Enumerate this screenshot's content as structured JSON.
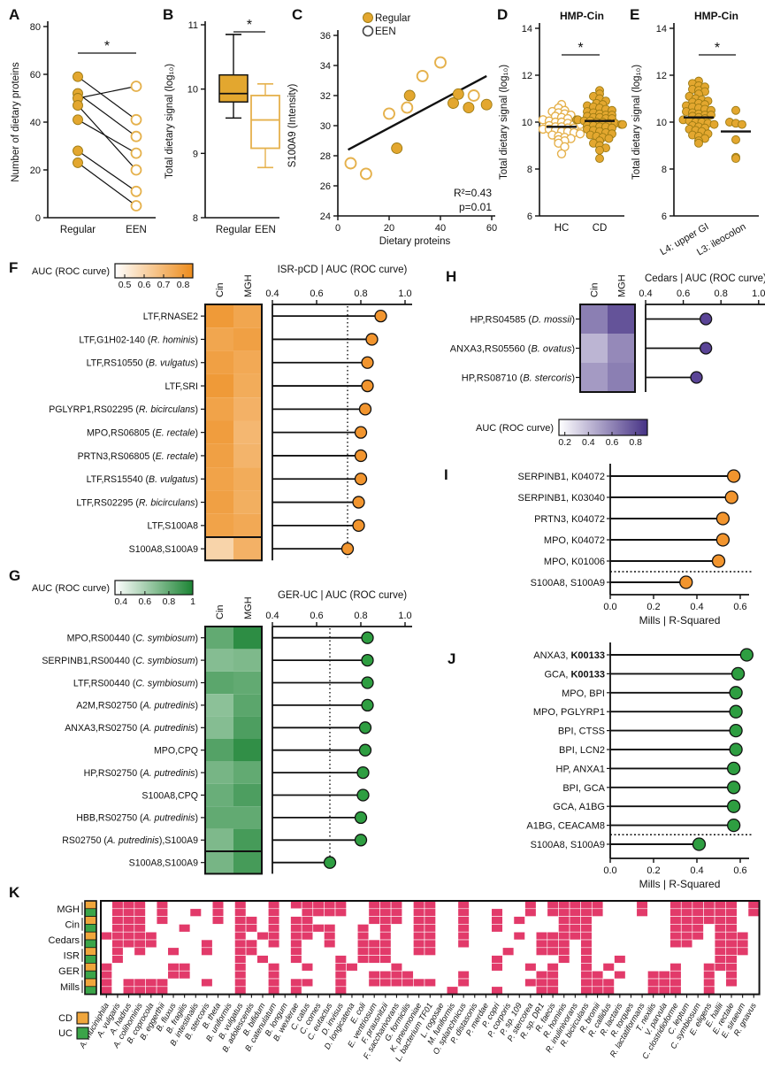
{
  "colors": {
    "gold": "#E3A72F",
    "gold_dark": "#9C7A12",
    "gold_open": "#E5B14C",
    "orange": "#F2952E",
    "green": "#2E9E41",
    "purple": "#5A4496",
    "heat_orange": "#ED8C1C",
    "heat_green": "#1C8434",
    "heat_purple": "#463285",
    "pink": "#E23A6A",
    "cd": "#F0A63C",
    "uc": "#3BA549"
  },
  "chart_data": [
    {
      "id": "A",
      "label": "A",
      "type": "paired-dot",
      "ylabel": "Number of dietary proteins",
      "ylim": [
        0,
        80
      ],
      "yticks": [
        0,
        20,
        40,
        60,
        80
      ],
      "categories": [
        "Regular",
        "EEN"
      ],
      "pairs": [
        [
          59,
          41
        ],
        [
          52,
          34
        ],
        [
          50,
          55
        ],
        [
          47,
          20
        ],
        [
          41,
          27
        ],
        [
          28,
          11
        ],
        [
          23,
          5
        ]
      ],
      "sig": "*"
    },
    {
      "id": "B",
      "label": "B",
      "type": "box",
      "ylabel": "Total dietary signal (log₁₀)",
      "ylim": [
        8,
        11
      ],
      "yticks": [
        8,
        9,
        10,
        11
      ],
      "boxes": [
        {
          "label": "Regular",
          "filled": true,
          "low": 9.55,
          "q1": 9.8,
          "median": 9.93,
          "q3": 10.22,
          "high": 10.85
        },
        {
          "label": "EEN",
          "filled": false,
          "low": 8.78,
          "q1": 9.08,
          "median": 9.52,
          "q3": 9.9,
          "high": 10.08
        }
      ],
      "sig": "*"
    },
    {
      "id": "C",
      "label": "C",
      "type": "scatter",
      "xlabel": "Dietary proteins",
      "ylabel": "S100A9 (Intensity)",
      "xlim": [
        0,
        60
      ],
      "xticks": [
        0,
        20,
        40,
        60
      ],
      "ylim": [
        24,
        36
      ],
      "yticks": [
        24,
        26,
        28,
        30,
        32,
        34,
        36
      ],
      "legend": [
        {
          "label": "Regular",
          "filled": true
        },
        {
          "label": "EEN",
          "filled": false
        }
      ],
      "regular": [
        [
          23,
          28.5
        ],
        [
          28,
          32
        ],
        [
          45,
          31.5
        ],
        [
          47,
          32.1
        ],
        [
          51,
          31.2
        ],
        [
          58,
          31.4
        ]
      ],
      "een": [
        [
          5,
          27.5
        ],
        [
          11,
          26.8
        ],
        [
          20,
          30.8
        ],
        [
          27,
          31.2
        ],
        [
          33,
          33.3
        ],
        [
          40,
          34.2
        ],
        [
          53,
          32
        ]
      ],
      "fit_line": [
        [
          4,
          28.4
        ],
        [
          58,
          33.3
        ]
      ],
      "annotation": [
        "R²=0.43",
        "p=0.01"
      ]
    },
    {
      "id": "D",
      "label": "D",
      "type": "beeswarm",
      "title": "HMP-Cin",
      "ylabel": "Total dietary signal (log₁₀)",
      "ylim": [
        6,
        14
      ],
      "yticks": [
        6,
        8,
        10,
        12,
        14
      ],
      "rotate_cats": false,
      "sig": "*",
      "groups": [
        {
          "label": "HC",
          "filled": false,
          "mean": 9.8,
          "values": [
            10.75,
            10.6,
            10.5,
            10.45,
            10.4,
            10.35,
            10.3,
            10.25,
            10.2,
            10.15,
            10.1,
            10.05,
            10.0,
            10.0,
            9.95,
            9.9,
            9.9,
            9.85,
            9.8,
            9.8,
            9.75,
            9.75,
            9.7,
            9.7,
            9.65,
            9.6,
            9.6,
            9.55,
            9.5,
            9.45,
            9.4,
            9.35,
            9.3,
            9.25,
            9.2,
            9.1,
            8.95,
            8.65
          ]
        },
        {
          "label": "CD",
          "filled": true,
          "mean": 10.05,
          "values": [
            11.35,
            11.2,
            11.1,
            11.0,
            10.9,
            10.8,
            10.75,
            10.7,
            10.65,
            10.6,
            10.55,
            10.5,
            10.45,
            10.4,
            10.35,
            10.3,
            10.3,
            10.25,
            10.2,
            10.2,
            10.15,
            10.15,
            10.1,
            10.1,
            10.05,
            10.05,
            10.0,
            10.0,
            9.95,
            9.95,
            9.9,
            9.9,
            9.85,
            9.85,
            9.8,
            9.8,
            9.75,
            9.7,
            9.65,
            9.6,
            9.55,
            9.5,
            9.45,
            9.4,
            9.35,
            9.3,
            9.2,
            9.1,
            9.0,
            8.9,
            8.8,
            8.45
          ]
        }
      ]
    },
    {
      "id": "E",
      "label": "E",
      "type": "beeswarm",
      "title": "HMP-Cin",
      "ylabel": "Total dietary signal (log₁₀)",
      "ylim": [
        6,
        14
      ],
      "yticks": [
        6,
        8,
        10,
        12,
        14
      ],
      "rotate_cats": true,
      "sig": "*",
      "groups": [
        {
          "label": "L4: upper GI",
          "filled": true,
          "mean": 10.2,
          "values": [
            11.75,
            11.65,
            11.55,
            11.5,
            11.4,
            11.35,
            11.3,
            11.2,
            11.1,
            11.0,
            10.95,
            10.9,
            10.85,
            10.8,
            10.75,
            10.7,
            10.65,
            10.6,
            10.55,
            10.5,
            10.45,
            10.4,
            10.35,
            10.3,
            10.3,
            10.25,
            10.2,
            10.15,
            10.1,
            10.05,
            10.0,
            10.0,
            9.95,
            9.9,
            9.85,
            9.8,
            9.75,
            9.7,
            9.65,
            9.6,
            9.5,
            9.45,
            9.4,
            9.3,
            9.2,
            9.1
          ]
        },
        {
          "label": "L3: ileocolon",
          "filled": true,
          "mean": 9.6,
          "values": [
            10.5,
            10.0,
            9.95,
            9.9,
            9.25,
            8.5,
            8.45
          ]
        }
      ]
    },
    {
      "id": "F",
      "label": "F",
      "type": "heat-lollipop",
      "color": "orange",
      "colorbar": {
        "label": "AUC (ROC curve)",
        "ticks": [
          0.5,
          0.6,
          0.7,
          0.8
        ],
        "tick_labels": [
          "0.5",
          "0.6",
          "0.7",
          "0.8"
        ],
        "domain": [
          0.45,
          0.85
        ]
      },
      "columns": [
        "Cin",
        "MGH"
      ],
      "axis": {
        "label": "ISR-pCD | AUC (ROC curve)",
        "lim": [
          0.4,
          1.0
        ],
        "ticks": [
          0.4,
          0.6,
          0.8,
          1.0
        ],
        "tick_labels": [
          "0.4",
          "0.6",
          "0.8",
          "1.0"
        ]
      },
      "dotted_at": 0.74,
      "rows": [
        {
          "label": "LTF,RNASE2",
          "heat": [
            0.8,
            0.76
          ],
          "value": 0.89
        },
        {
          "label": "LTF,G1H02-140 (*R. hominis*)",
          "heat": [
            0.76,
            0.78
          ],
          "value": 0.85
        },
        {
          "label": "LTF,RS10550 (*B. vulgatus*)",
          "heat": [
            0.78,
            0.75
          ],
          "value": 0.83
        },
        {
          "label": "LTF,SRI",
          "heat": [
            0.8,
            0.74
          ],
          "value": 0.83
        },
        {
          "label": "PGLYRP1,RS02295 (*R. bicirculans*)",
          "heat": [
            0.77,
            0.72
          ],
          "value": 0.82
        },
        {
          "label": "MPO,RS06805 (*E. rectale*)",
          "heat": [
            0.79,
            0.7
          ],
          "value": 0.8
        },
        {
          "label": "PRTN3,RS06805 (*E. rectale*)",
          "heat": [
            0.78,
            0.71
          ],
          "value": 0.8
        },
        {
          "label": "LTF,RS15540 (*B. vulgatus*)",
          "heat": [
            0.77,
            0.74
          ],
          "value": 0.8
        },
        {
          "label": "LTF,RS02295 (*R. bicirculans*)",
          "heat": [
            0.78,
            0.73
          ],
          "value": 0.79
        },
        {
          "label": "LTF,S100A8",
          "heat": [
            0.77,
            0.75
          ],
          "value": 0.79
        },
        {
          "label": "S100A8,S100A9",
          "heat": [
            0.6,
            0.72
          ],
          "value": 0.74,
          "separated": true
        }
      ]
    },
    {
      "id": "G",
      "label": "G",
      "type": "heat-lollipop",
      "color": "green",
      "colorbar": {
        "label": "AUC (ROC curve)",
        "ticks": [
          0.4,
          0.6,
          0.8,
          1.0
        ],
        "tick_labels": [
          "0.4",
          "0.6",
          "0.8",
          "1"
        ],
        "domain": [
          0.35,
          1.0
        ]
      },
      "columns": [
        "Cin",
        "MGH"
      ],
      "axis": {
        "label": "GER-UC | AUC (ROC curve)",
        "lim": [
          0.4,
          1.0
        ],
        "ticks": [
          0.4,
          0.6,
          0.8,
          1.0
        ],
        "tick_labels": [
          "0.4",
          "0.6",
          "0.8",
          "1.0"
        ]
      },
      "dotted_at": 0.66,
      "rows": [
        {
          "label": "MPO,RS00440 (*C. symbiosum*)",
          "heat": [
            0.8,
            0.95
          ],
          "value": 0.83
        },
        {
          "label": "SERPINB1,RS00440 (*C. symbiosum*)",
          "heat": [
            0.7,
            0.72
          ],
          "value": 0.83
        },
        {
          "label": "LTF,RS00440 (*C. symbiosum*)",
          "heat": [
            0.82,
            0.8
          ],
          "value": 0.83
        },
        {
          "label": "A2M,RS02750 (*A. putredinis*)",
          "heat": [
            0.68,
            0.82
          ],
          "value": 0.83
        },
        {
          "label": "ANXA3,RS02750 (*A. putredinis*)",
          "heat": [
            0.7,
            0.86
          ],
          "value": 0.82
        },
        {
          "label": "MPO,CPQ",
          "heat": [
            0.84,
            0.94
          ],
          "value": 0.82
        },
        {
          "label": "HP,RS02750 (*A. putredinis*)",
          "heat": [
            0.74,
            0.8
          ],
          "value": 0.81
        },
        {
          "label": "S100A8,CPQ",
          "heat": [
            0.78,
            0.86
          ],
          "value": 0.81
        },
        {
          "label": "HBB,RS02750 (*A. putredinis*)",
          "heat": [
            0.8,
            0.8
          ],
          "value": 0.8
        },
        {
          "label": "RS02750 (*A. putredinis*),S100A9",
          "heat": [
            0.72,
            0.88
          ],
          "value": 0.8
        },
        {
          "label": "S100A8,S100A9",
          "heat": [
            0.74,
            0.88
          ],
          "value": 0.66,
          "separated": true
        }
      ]
    },
    {
      "id": "H",
      "label": "H",
      "type": "heat-lollipop",
      "color": "purple",
      "colorbar": {
        "label": "AUC (ROC curve)",
        "ticks": [
          0.2,
          0.4,
          0.6,
          0.8
        ],
        "tick_labels": [
          "0.2",
          "0.4",
          "0.6",
          "0.8"
        ],
        "domain": [
          0.15,
          0.9
        ],
        "below": true
      },
      "columns": [
        "Cin",
        "MGH"
      ],
      "axis": {
        "label": "Cedars | AUC (ROC curve)",
        "lim": [
          0.4,
          1.0
        ],
        "ticks": [
          0.4,
          0.6,
          0.8,
          1.0
        ],
        "tick_labels": [
          "0.4",
          "0.6",
          "0.8",
          "1.0"
        ]
      },
      "dotted_at": null,
      "rows": [
        {
          "label": "HP,RS04585 (*D. mossii*)",
          "heat": [
            0.62,
            0.78
          ],
          "value": 0.72
        },
        {
          "label": "ANXA3,RS05560 (*B. ovatus*)",
          "heat": [
            0.42,
            0.58
          ],
          "value": 0.72
        },
        {
          "label": "HP,RS08710 (*B. stercoris*)",
          "heat": [
            0.52,
            0.62
          ],
          "value": 0.67
        }
      ]
    },
    {
      "id": "I",
      "label": "I",
      "type": "lollipop",
      "color": "orange",
      "axis": {
        "label": "Mills | R-Squared",
        "ticks": [
          0.0,
          0.2,
          0.4,
          0.6
        ],
        "tick_labels": [
          "0.0",
          "0.2",
          "0.4",
          "0.6"
        ]
      },
      "rows": [
        {
          "label": "SERPINB1, K04072",
          "value": 0.57
        },
        {
          "label": "SERPINB1, K03040",
          "value": 0.56
        },
        {
          "label": "PRTN3, K04072",
          "value": 0.52
        },
        {
          "label": "MPO, K04072",
          "value": 0.52
        },
        {
          "label": "MPO, K01006",
          "value": 0.5
        },
        {
          "label": "S100A8, S100A9",
          "value": 0.35,
          "below_dotted": true
        }
      ]
    },
    {
      "id": "J",
      "label": "J",
      "type": "lollipop",
      "color": "green",
      "axis": {
        "label": "Mills | R-Squared",
        "ticks": [
          0.0,
          0.2,
          0.4,
          0.6
        ],
        "tick_labels": [
          "0.0",
          "0.2",
          "0.4",
          "0.6"
        ]
      },
      "rows": [
        {
          "label": "ANXA3, **K00133**",
          "value": 0.63
        },
        {
          "label": "GCA, **K00133**",
          "value": 0.59
        },
        {
          "label": "MPO, BPI",
          "value": 0.58
        },
        {
          "label": "MPO, PGLYRP1",
          "value": 0.58
        },
        {
          "label": "BPI, CTSS",
          "value": 0.58
        },
        {
          "label": "BPI, LCN2",
          "value": 0.58
        },
        {
          "label": "HP, ANXA1",
          "value": 0.57
        },
        {
          "label": "BPI, GCA",
          "value": 0.57
        },
        {
          "label": "GCA, A1BG",
          "value": 0.57
        },
        {
          "label": "A1BG, CEACAM8",
          "value": 0.57
        },
        {
          "label": "S100A8, S100A9",
          "value": 0.41,
          "below_dotted": true
        }
      ]
    },
    {
      "id": "K",
      "label": "K",
      "type": "binary-heatmap",
      "cohorts": [
        "MGH",
        "Cin",
        "Cedars",
        "ISR",
        "GER",
        "Mills"
      ],
      "diagnoses": [
        {
          "label": "CD",
          "color_key": "cd"
        },
        {
          "label": "UC",
          "color_key": "uc"
        }
      ],
      "species": [
        "A. muciniphila",
        "A. vulgaris",
        "A. hadrus",
        "A. colihominis",
        "B. coprocola",
        "B. eggerthii",
        "B. fluxus",
        "B. fragilis",
        "B. intestinalis",
        "B. stercoris",
        "B. theta",
        "B. uniformis",
        "B. vulgatus",
        "B. adolescentis",
        "B. bifidum",
        "B. catenulatum",
        "B. longum",
        "B. wexlerae",
        "C. catus",
        "C. comes",
        "C. eutactus",
        "D. invisus",
        "D. longicatena",
        "E. coli",
        "E. ventriosum",
        "F. prausnitzii",
        "F. saccharivorans",
        "G. formicilis",
        "K. pneumoniae",
        "L. bacterium TF01",
        "L. rogosae",
        "M. funiformis",
        "O. splanchnicus",
        "P. distasonis",
        "P. merdae",
        "P. copri",
        "P. corporis",
        "P. sp. 109",
        "P. stercorea",
        "R. sp. DR1",
        "R. faecis",
        "R. hominis",
        "R. inulinivorans",
        "R. bicirculans",
        "R. bromii",
        "R. callidus",
        "R. lactaris",
        "R. torques",
        "R. lactatiformans",
        "T. nexilis",
        "V. parvula",
        "C. clostridioforme",
        "C. leptum",
        "C. symbiosum",
        "E. eligens",
        "E. hallii",
        "E. rectale",
        "E. siraeum",
        "R. gnavus"
      ],
      "matrix": [
        "01110100001010010111110011101100100000101111100010011111101",
        "01110100101010010011110011101100100100101111100010011111101",
        "01110100001011010110000011101100100101000111000000011111100",
        "01110001000011010111100101001100100100000111000000011101100",
        "11111000000010110110100101001100100001011111000000011101110",
        "01111000010011010100100111001100100000011101000000011001110",
        "01010010010011000100000111001100000010011101000000000001110",
        "01000000000010100100010111000000000100000101001000000001100",
        "10000011000010010010011000100000000100101001010000010011100",
        "10000011000010010000010011110000100000011001101001110010100",
        "10111100010010010110010011111100100000111001110001110010100",
        "10111100000010010100010000000001000100011001110001110010000"
      ]
    }
  ]
}
